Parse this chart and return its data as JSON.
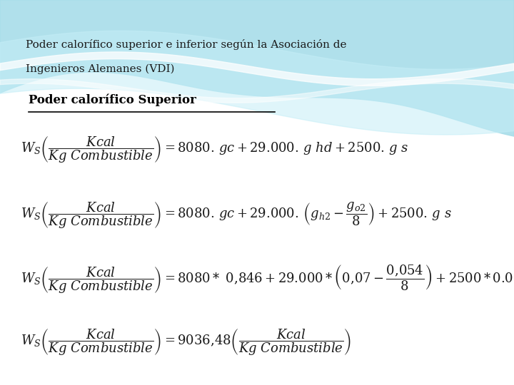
{
  "title_line1": "Poder calorífico superior e inferior según la Asociación de",
  "title_line2": "Ingenieros Alemanes (VDI)",
  "subtitle": "Poder calorífico Superior",
  "bg_color": "#ffffff",
  "title_color": "#1a1a1a",
  "subtitle_color": "#000000",
  "wave_color1": "#a8dde9",
  "wave_color2": "#c5eef7",
  "formula_fontsize": 13,
  "title_fontsize": 11,
  "subtitle_fontsize": 12
}
